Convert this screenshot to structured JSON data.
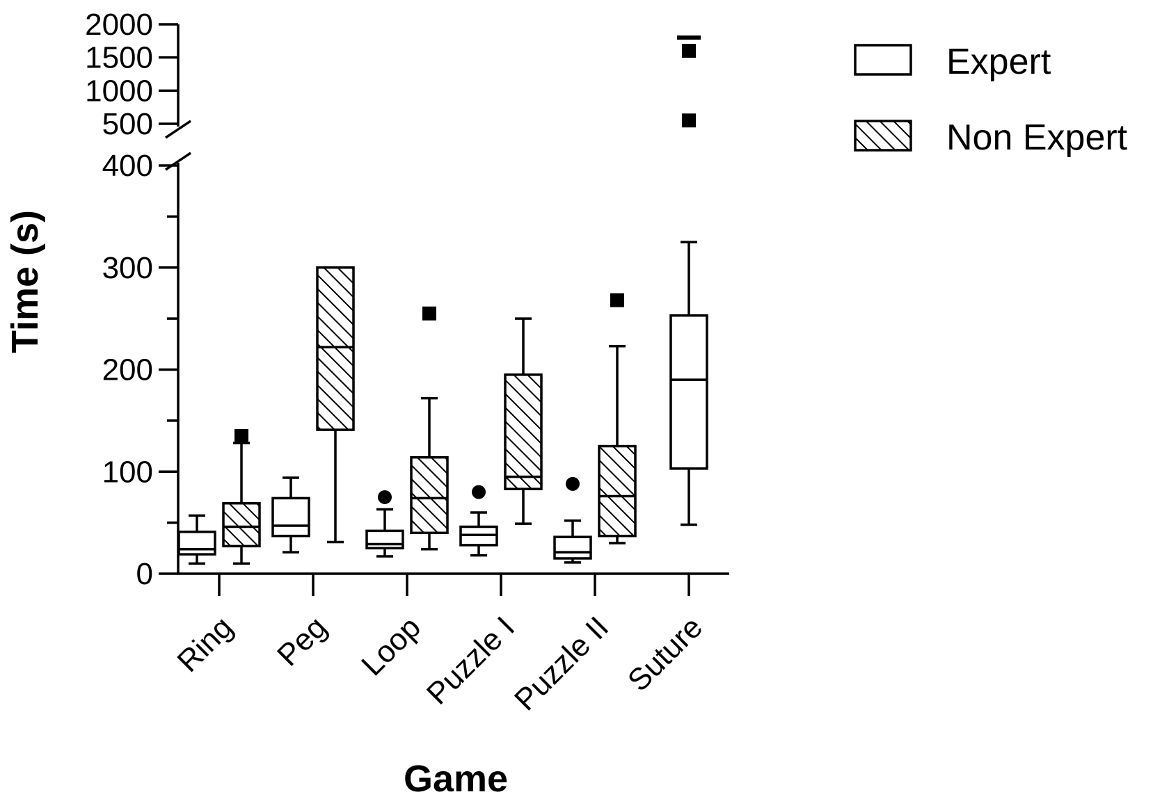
{
  "chart_data": {
    "type": "boxplot",
    "title": "",
    "xlabel": "Game",
    "ylabel": "Time (s)",
    "categories": [
      "Ring",
      "Peg",
      "Loop",
      "Puzzle I",
      "Puzzle II",
      "Suture"
    ],
    "y_axis": {
      "broken": true,
      "lower_range": [
        0,
        400
      ],
      "upper_range": [
        500,
        2000
      ],
      "lower_ticks": [
        0,
        100,
        200,
        300,
        400
      ],
      "lower_minor_step": 50,
      "upper_ticks": [
        500,
        1000,
        1500,
        2000
      ]
    },
    "legend": {
      "placement": "top-right",
      "entries": [
        {
          "name": "Expert",
          "pattern": "open"
        },
        {
          "name": "Non Expert",
          "pattern": "hatched"
        }
      ]
    },
    "series": [
      {
        "name": "Expert",
        "pattern": "open",
        "boxes": [
          {
            "category": "Ring",
            "min": 10,
            "q1": 19,
            "median": 24,
            "q3": 41,
            "max": 57,
            "outliers": []
          },
          {
            "category": "Peg",
            "min": 21,
            "q1": 37,
            "median": 47,
            "q3": 74,
            "max": 94,
            "outliers": []
          },
          {
            "category": "Loop",
            "min": 17,
            "q1": 25,
            "median": 29,
            "q3": 42,
            "max": 63,
            "outliers": [
              {
                "value": 75,
                "marker": "circle"
              }
            ]
          },
          {
            "category": "Puzzle I",
            "min": 18,
            "q1": 28,
            "median": 38,
            "q3": 46,
            "max": 60,
            "outliers": [
              {
                "value": 80,
                "marker": "circle"
              }
            ]
          },
          {
            "category": "Puzzle II",
            "min": 11,
            "q1": 15,
            "median": 21,
            "q3": 36,
            "max": 52,
            "outliers": [
              {
                "value": 88,
                "marker": "circle"
              }
            ]
          },
          {
            "category": "Suture",
            "min": 48,
            "q1": 103,
            "median": 190,
            "q3": 253,
            "max": 325,
            "outliers": [
              {
                "value": 550,
                "marker": "square"
              },
              {
                "value": 1600,
                "marker": "square"
              },
              {
                "value": 1800,
                "marker": "dash"
              }
            ]
          }
        ]
      },
      {
        "name": "Non Expert",
        "pattern": "hatched",
        "boxes": [
          {
            "category": "Ring",
            "min": 10,
            "q1": 27,
            "median": 46,
            "q3": 69,
            "max": 128,
            "outliers": [
              {
                "value": 135,
                "marker": "square"
              }
            ]
          },
          {
            "category": "Peg",
            "min": 31,
            "q1": 141,
            "median": 222,
            "q3": 300,
            "max": 300,
            "outliers": []
          },
          {
            "category": "Loop",
            "min": 24,
            "q1": 40,
            "median": 74,
            "q3": 114,
            "max": 172,
            "outliers": [
              {
                "value": 255,
                "marker": "square"
              }
            ]
          },
          {
            "category": "Puzzle I",
            "min": 49,
            "q1": 83,
            "median": 95,
            "q3": 195,
            "max": 250,
            "outliers": []
          },
          {
            "category": "Puzzle II",
            "min": 30,
            "q1": 37,
            "median": 76,
            "q3": 125,
            "max": 223,
            "outliers": [
              {
                "value": 268,
                "marker": "square"
              }
            ]
          }
        ]
      }
    ]
  }
}
